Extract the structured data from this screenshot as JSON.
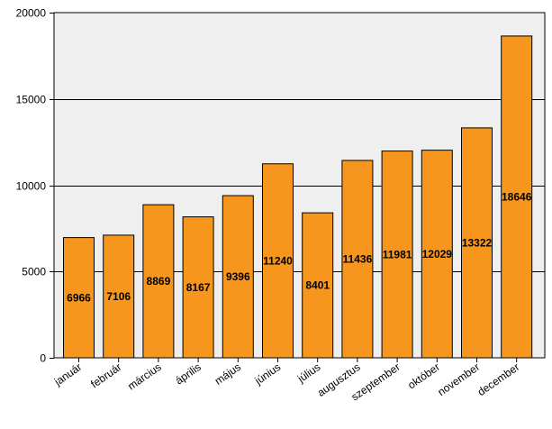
{
  "chart_data": {
    "type": "bar",
    "title": "",
    "xlabel": "",
    "ylabel": "",
    "categories": [
      "január",
      "február",
      "március",
      "április",
      "május",
      "június",
      "július",
      "augusztus",
      "szeptember",
      "október",
      "november",
      "december"
    ],
    "values": [
      6966,
      7106,
      8869,
      8167,
      9396,
      11240,
      8401,
      11436,
      11981,
      12029,
      13322,
      18646
    ],
    "data_labels": [
      "6966",
      "7106",
      "8869",
      "8167",
      "9396",
      "11240",
      "8401",
      "11436",
      "11981",
      "12029",
      "13322",
      "18646"
    ],
    "ylim": [
      0,
      20000
    ],
    "yticks": [
      0,
      5000,
      10000,
      15000,
      20000
    ],
    "ytick_labels": [
      "0",
      "5000",
      "10000",
      "15000",
      "20000"
    ],
    "grid": true,
    "legend": "none",
    "colors": {
      "bar_fill": "#F7961D",
      "bar_stroke": "#000000",
      "plot_background": "#EFEFEF",
      "gridline": "#000000"
    }
  }
}
